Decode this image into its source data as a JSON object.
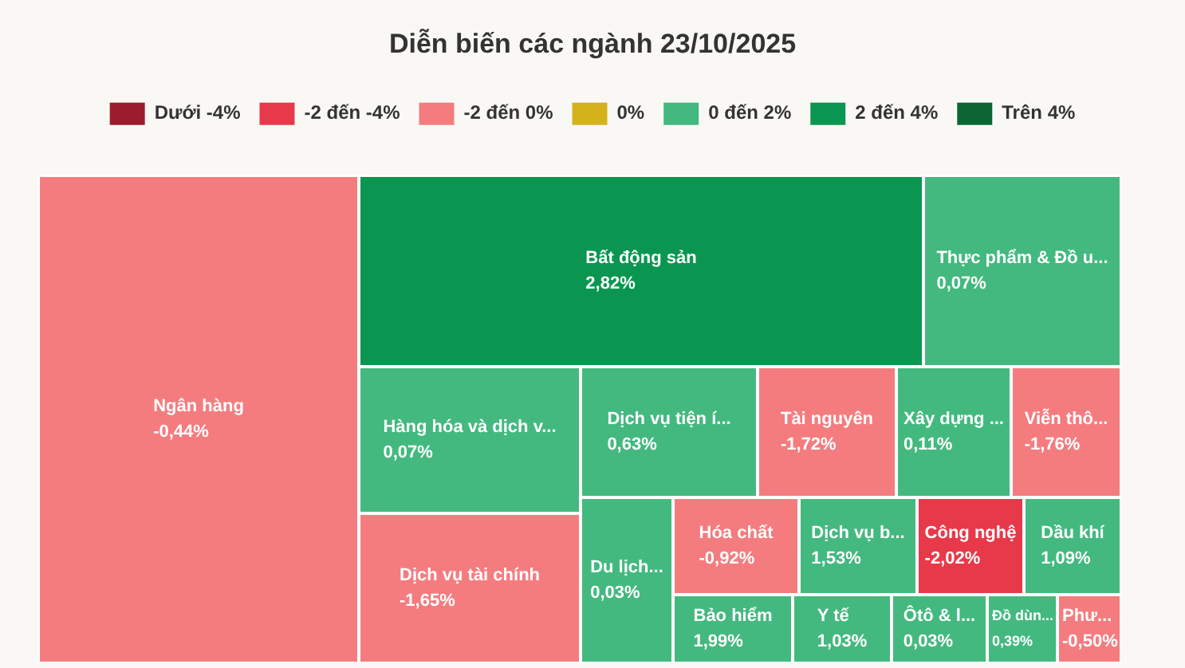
{
  "chart_data": {
    "type": "other",
    "title": "Diễn biến các ngành 23/10/2025",
    "legend": "top",
    "categories": [
      "Ngân hàng",
      "Bất động sản",
      "Thực phẩm & Đồ u...",
      "Hàng hóa và dịch v...",
      "Dịch vụ tiện í...",
      "Tài nguyên",
      "Xây dựng ...",
      "Viễn thô...",
      "Dịch vụ tài chính",
      "Du lịch...",
      "Hóa chất",
      "Dịch vụ b...",
      "Công nghệ",
      "Dầu khí",
      "Bảo hiểm",
      "Y tế",
      "Ôtô & l...",
      "Đồ dùn...",
      "Phư..."
    ],
    "series": [
      {
        "name": "Dưới -4%",
        "color": "#9b1c2a",
        "values": [
          null,
          null,
          null,
          null,
          null,
          null,
          null,
          null,
          null,
          null,
          null,
          null,
          null,
          null,
          null,
          null,
          null,
          null,
          null
        ]
      },
      {
        "name": "-2 đến -4%",
        "color": "#e8394a",
        "values": [
          null,
          null,
          null,
          null,
          null,
          null,
          null,
          null,
          null,
          null,
          null,
          null,
          -2.02,
          null,
          null,
          null,
          null,
          null,
          null
        ],
        "value_labels": [
          null,
          null,
          null,
          null,
          null,
          null,
          null,
          null,
          null,
          null,
          null,
          null,
          "-2,02%",
          null,
          null,
          null,
          null,
          null,
          null
        ]
      },
      {
        "name": "-2 đến 0%",
        "color": "#f47c7f",
        "values": [
          -0.44,
          null,
          null,
          null,
          null,
          -1.72,
          null,
          -1.76,
          -1.65,
          null,
          -0.92,
          null,
          null,
          null,
          null,
          null,
          null,
          null,
          -0.5
        ],
        "value_labels": [
          "-0,44%",
          null,
          null,
          null,
          null,
          "-1,72%",
          null,
          "-1,76%",
          "-1,65%",
          null,
          "-0,92%",
          null,
          null,
          null,
          null,
          null,
          null,
          null,
          "-0,50%"
        ]
      },
      {
        "name": "0%",
        "color": "#d4b21c",
        "values": [
          null,
          null,
          null,
          null,
          null,
          null,
          null,
          null,
          null,
          null,
          null,
          null,
          null,
          null,
          null,
          null,
          null,
          null,
          null
        ]
      },
      {
        "name": "0 đến 2%",
        "color": "#43b97f",
        "values": [
          null,
          null,
          0.07,
          0.07,
          0.63,
          null,
          0.11,
          null,
          null,
          0.03,
          null,
          1.53,
          null,
          1.09,
          1.99,
          1.03,
          0.03,
          0.39,
          null
        ],
        "value_labels": [
          null,
          null,
          "0,07%",
          "0,07%",
          "0,63%",
          null,
          "0,11%",
          null,
          null,
          "0,03%",
          null,
          "1,53%",
          null,
          "1,09%",
          "1,99%",
          "1,03%",
          "0,03%",
          "0,39%",
          null
        ]
      },
      {
        "name": "2 đến 4%",
        "color": "#0a9650",
        "values": [
          null,
          2.82,
          null,
          null,
          null,
          null,
          null,
          null,
          null,
          null,
          null,
          null,
          null,
          null,
          null,
          null,
          null,
          null,
          null
        ],
        "value_labels": [
          null,
          "2,82%",
          null,
          null,
          null,
          null,
          null,
          null,
          null,
          null,
          null,
          null,
          null,
          null,
          null,
          null,
          null,
          null,
          null
        ]
      },
      {
        "name": "Trên 4%",
        "color": "#0b6634",
        "values": [
          null,
          null,
          null,
          null,
          null,
          null,
          null,
          null,
          null,
          null,
          null,
          null,
          null,
          null,
          null,
          null,
          null,
          null,
          null
        ]
      }
    ]
  }
}
